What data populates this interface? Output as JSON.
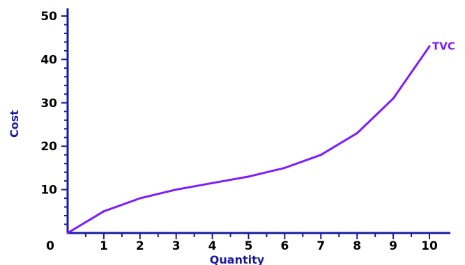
{
  "chart_data": {
    "type": "line",
    "title": "",
    "xlabel": "Quantity",
    "ylabel": "Cost",
    "xlim": [
      0,
      10
    ],
    "ylim": [
      0,
      50
    ],
    "x_ticks": [
      1,
      2,
      3,
      4,
      5,
      6,
      7,
      8,
      9,
      10
    ],
    "y_ticks": [
      10,
      20,
      30,
      40,
      50
    ],
    "origin_label": "0",
    "grid": false,
    "legend": "none",
    "colors": {
      "series": "#7f1aff",
      "axis": "#1a1aa0",
      "axis_title": "#1a1aa0",
      "tick_label": "#000000"
    },
    "series": [
      {
        "name": "TVC",
        "x": [
          0,
          1,
          2,
          3,
          4,
          5,
          6,
          7,
          8,
          9,
          10
        ],
        "y": [
          0,
          5,
          8,
          10,
          11.5,
          13,
          15,
          18,
          23,
          31,
          43
        ]
      }
    ]
  }
}
